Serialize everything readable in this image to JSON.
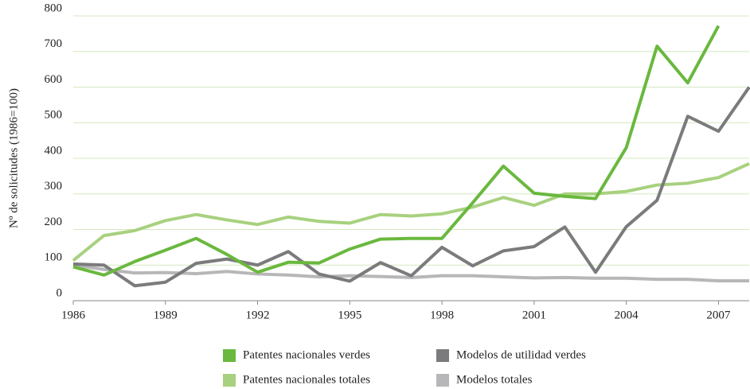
{
  "chart_data": {
    "type": "line",
    "y_label": "Nº de solicitudes (1986=100)",
    "x": [
      1986,
      1987,
      1988,
      1989,
      1990,
      1991,
      1992,
      1993,
      1994,
      1995,
      1996,
      1997,
      1998,
      1999,
      2000,
      2001,
      2002,
      2003,
      2004,
      2005,
      2006,
      2007,
      2008
    ],
    "series": [
      {
        "name": "Patentes nacionales verdes",
        "color": "#6ab83e",
        "values": [
          95,
          72,
          110,
          142,
          175,
          130,
          80,
          108,
          106,
          145,
          173,
          175,
          175,
          275,
          378,
          302,
          293,
          287,
          430,
          715,
          612,
          772,
          null
        ]
      },
      {
        "name": "Modelos de utilidad verdes",
        "color": "#7b7b7d",
        "values": [
          103,
          100,
          42,
          52,
          105,
          117,
          100,
          138,
          75,
          55,
          107,
          70,
          150,
          98,
          140,
          152,
          207,
          80,
          208,
          282,
          518,
          476,
          600
        ]
      },
      {
        "name": "Patentes nacionales totales",
        "color": "#a8d17f",
        "values": [
          113,
          183,
          197,
          225,
          242,
          227,
          214,
          235,
          223,
          218,
          242,
          238,
          244,
          263,
          290,
          268,
          300,
          300,
          307,
          325,
          330,
          346,
          385
        ]
      },
      {
        "name": "Modelos totales",
        "color": "#b7b7b9",
        "values": [
          100,
          88,
          78,
          79,
          76,
          82,
          75,
          72,
          67,
          70,
          68,
          65,
          70,
          70,
          67,
          64,
          65,
          63,
          63,
          60,
          60,
          56,
          56
        ]
      }
    ],
    "xlim": [
      1986,
      2008
    ],
    "xticks": [
      1986,
      1989,
      1992,
      1995,
      1998,
      2001,
      2004,
      2007
    ],
    "ylim": [
      0,
      800
    ],
    "yticks": [
      0,
      100,
      200,
      300,
      400,
      500,
      600,
      700,
      800
    ],
    "grid": true,
    "grid_color": "#d4e8bf",
    "legend": "bottom"
  }
}
